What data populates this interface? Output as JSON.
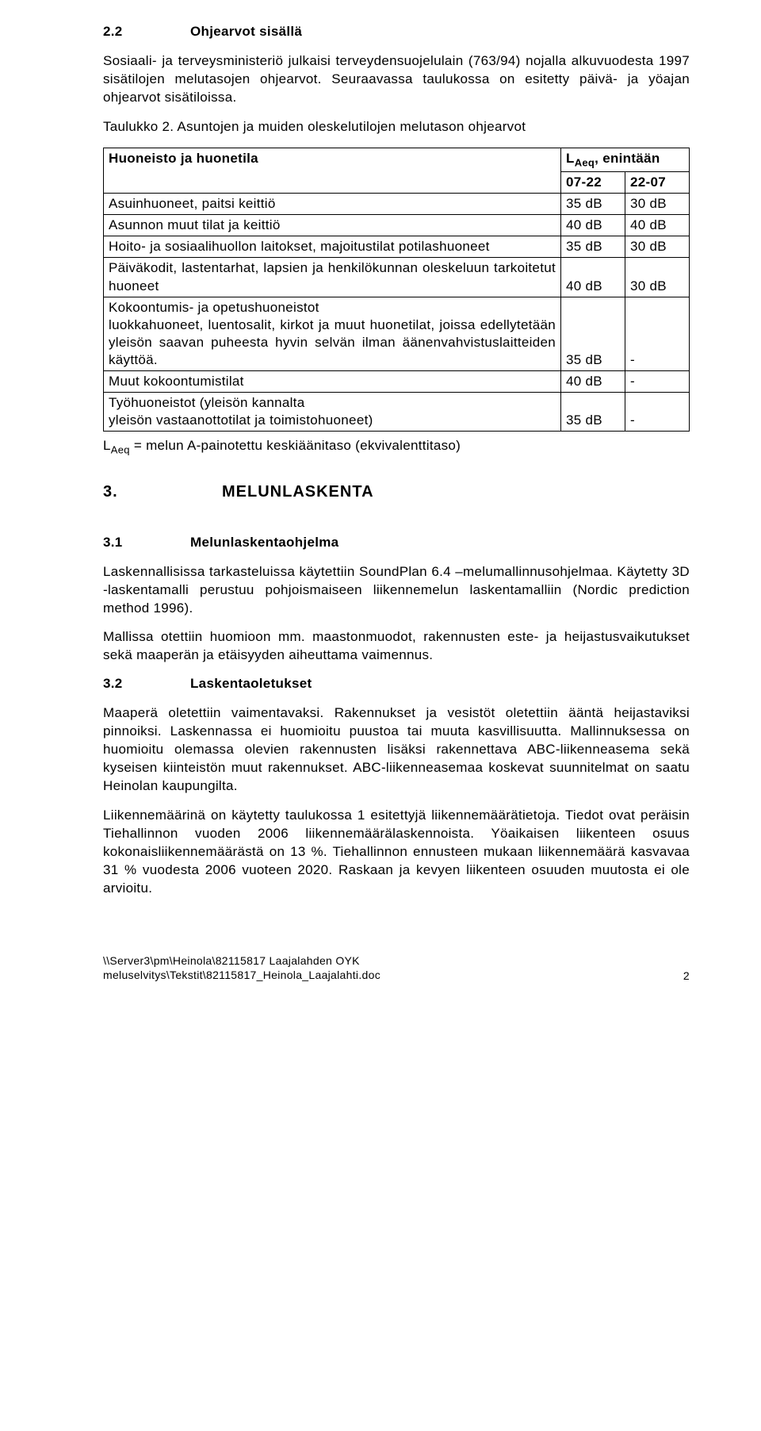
{
  "section22": {
    "num": "2.2",
    "title": "Ohjearvot sisällä",
    "para1": "Sosiaali- ja terveysministeriö julkaisi terveydensuojelulain (763/94) nojalla alkuvuodesta 1997 sisätilojen melutasojen ohjearvot. Seuraavassa taulukossa on esitetty päivä- ja yöajan ohjearvot sisätiloissa.",
    "caption": "Taulukko 2. Asuntojen ja muiden oleskelutilojen melutason ohjearvot"
  },
  "table2": {
    "header_left": "Huoneisto ja huonetila",
    "header_right_top": "L",
    "header_right_sub": "Aeq",
    "header_right_rest": ", enintään",
    "col1": "07-22",
    "col2": "22-07",
    "rows": [
      {
        "label": "Asuinhuoneet, paitsi keittiö",
        "v1": "35 dB",
        "v2": "30 dB"
      },
      {
        "label": "Asunnon muut tilat ja keittiö",
        "v1": "40 dB",
        "v2": "40 dB"
      },
      {
        "label": "Hoito- ja sosiaalihuollon laitokset, majoitustilat potilashuoneet",
        "v1": "35 dB",
        "v2": "30 dB"
      },
      {
        "label": "Päiväkodit, lastentarhat, lapsien ja henkilökunnan oleskeluun tarkoitetut huoneet",
        "v1": "40 dB",
        "v2": "30 dB"
      },
      {
        "label": "Kokoontumis- ja opetushuoneistot\nluokkahuoneet, luentosalit, kirkot ja muut huonetilat, joissa edellytetään yleisön saavan puheesta hyvin selvän ilman äänenvahvistuslaitteiden käyttöä.",
        "v1": "35 dB",
        "v2": "-"
      },
      {
        "label": "Muut kokoontumistilat",
        "v1": "40 dB",
        "v2": "-"
      },
      {
        "label": "Työhuoneistot (yleisön kannalta\nyleisön vastaanottotilat ja toimistohuoneet)",
        "v1": "35 dB",
        "v2": "-"
      }
    ]
  },
  "afterTable": {
    "prefix": "L",
    "sub": "Aeq",
    "rest": " = melun A-painotettu keskiäänitaso (ekvivalenttitaso)"
  },
  "section3": {
    "num": "3.",
    "title": "MELUNLASKENTA"
  },
  "section31": {
    "num": "3.1",
    "title": "Melunlaskentaohjelma",
    "para1": "Laskennallisissa tarkasteluissa käytettiin SoundPlan 6.4 –melumallinnusohjelmaa. Käytetty 3D -laskentamalli perustuu pohjoismaiseen liikennemelun laskentamalliin (Nordic prediction method 1996).",
    "para2": "Mallissa otettiin huomioon mm. maastonmuodot, rakennusten este- ja heijastusvaikutukset sekä maaperän ja etäisyyden aiheuttama vaimennus."
  },
  "section32": {
    "num": "3.2",
    "title": "Laskentaoletukset",
    "para1": "Maaperä oletettiin vaimentavaksi. Rakennukset ja vesistöt oletettiin ääntä heijastaviksi pinnoiksi. Laskennassa ei huomioitu puustoa tai muuta kasvillisuutta. Mallinnuksessa on huomioitu olemassa olevien rakennusten lisäksi rakennettava ABC-liikenneasema sekä kyseisen kiinteistön muut rakennukset. ABC-liikenneasemaa koskevat suunnitelmat on saatu Heinolan kaupungilta.",
    "para2": "Liikennemäärinä on käytetty taulukossa 1 esitettyjä liikennemäärätietoja. Tiedot ovat peräisin Tiehallinnon vuoden 2006 liikennemäärälaskennoista. Yöaikaisen liikenteen osuus kokonaisliikennemäärästä on 13 %. Tiehallinnon ennusteen mukaan liikennemäärä kasvavaa 31 % vuodesta 2006 vuoteen 2020. Raskaan ja kevyen liikenteen osuuden muutosta ei ole arvioitu."
  },
  "footer": {
    "path": "\\\\Server3\\pm\\Heinola\\82115817 Laajalahden OYK meluselvitys\\Tekstit\\82115817_Heinola_Laajalahti.doc",
    "pagenum": "2"
  }
}
